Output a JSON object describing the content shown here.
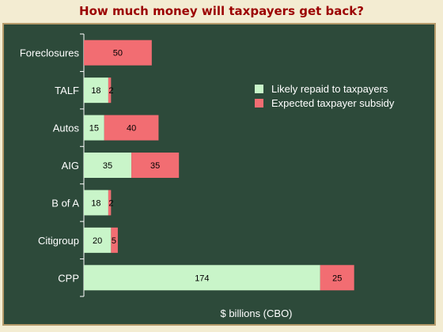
{
  "title": "How much money will taxpayers get back?",
  "colors": {
    "board": "#2d4a3a",
    "title": "#9b0000",
    "repaid": "#c9f5c9",
    "subsidy": "#f26d72",
    "text": "#ffffff"
  },
  "chart_data": {
    "type": "bar",
    "orientation": "horizontal",
    "stacked": true,
    "categories": [
      "Foreclosures",
      "TALF",
      "Autos",
      "AIG",
      "B of A",
      "Citigroup",
      "CPP"
    ],
    "series": [
      {
        "name": "Likely repaid to taxpayers",
        "values": [
          0,
          18,
          15,
          35,
          18,
          20,
          174
        ]
      },
      {
        "name": "Expected taxpayer subsidy",
        "values": [
          50,
          2,
          40,
          35,
          2,
          5,
          25
        ]
      }
    ],
    "xlabel": "$ billions (CBO)",
    "ylabel": "",
    "xlim": [
      0,
      230
    ],
    "grid": false,
    "legend_position": "top-right"
  }
}
